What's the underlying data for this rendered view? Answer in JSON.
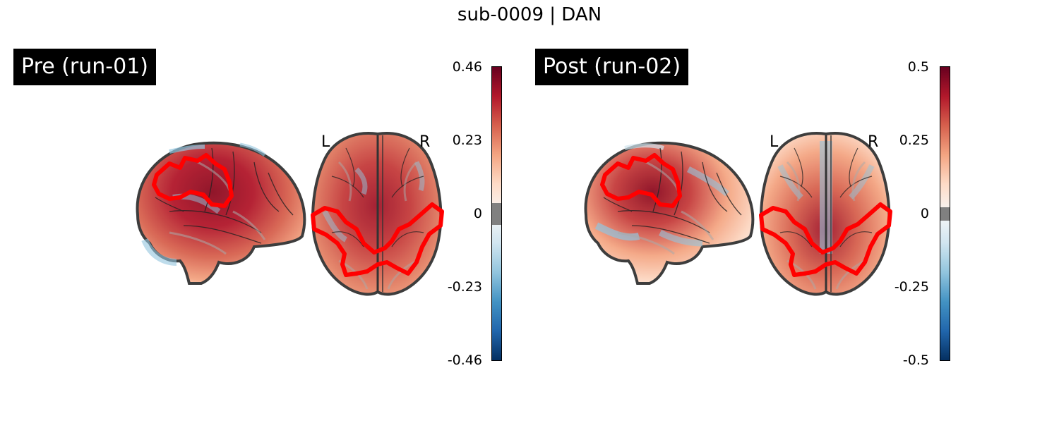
{
  "figure": {
    "title": "sub-0009 | DAN"
  },
  "colormap": {
    "name": "RdBu_r",
    "stops": [
      "#053061",
      "#2166ac",
      "#4393c3",
      "#92c5de",
      "#d1e5f0",
      "#f7f7f7",
      "#fddbc7",
      "#f4a582",
      "#d6604d",
      "#b2182b",
      "#67001f"
    ],
    "threshold_color": "#808080",
    "outline_color": "#ff0000"
  },
  "panels": [
    {
      "label": "Pre (run-01)",
      "hemi_left": "L",
      "hemi_right": "R",
      "colorbar": {
        "ticks": [
          "0.46",
          "0.23",
          "0",
          "-0.23",
          "-0.46"
        ]
      }
    },
    {
      "label": "Post (run-02)",
      "hemi_left": "L",
      "hemi_right": "R",
      "colorbar": {
        "ticks": [
          "0.5",
          "0.25",
          "0",
          "-0.25",
          "-0.5"
        ]
      }
    }
  ]
}
